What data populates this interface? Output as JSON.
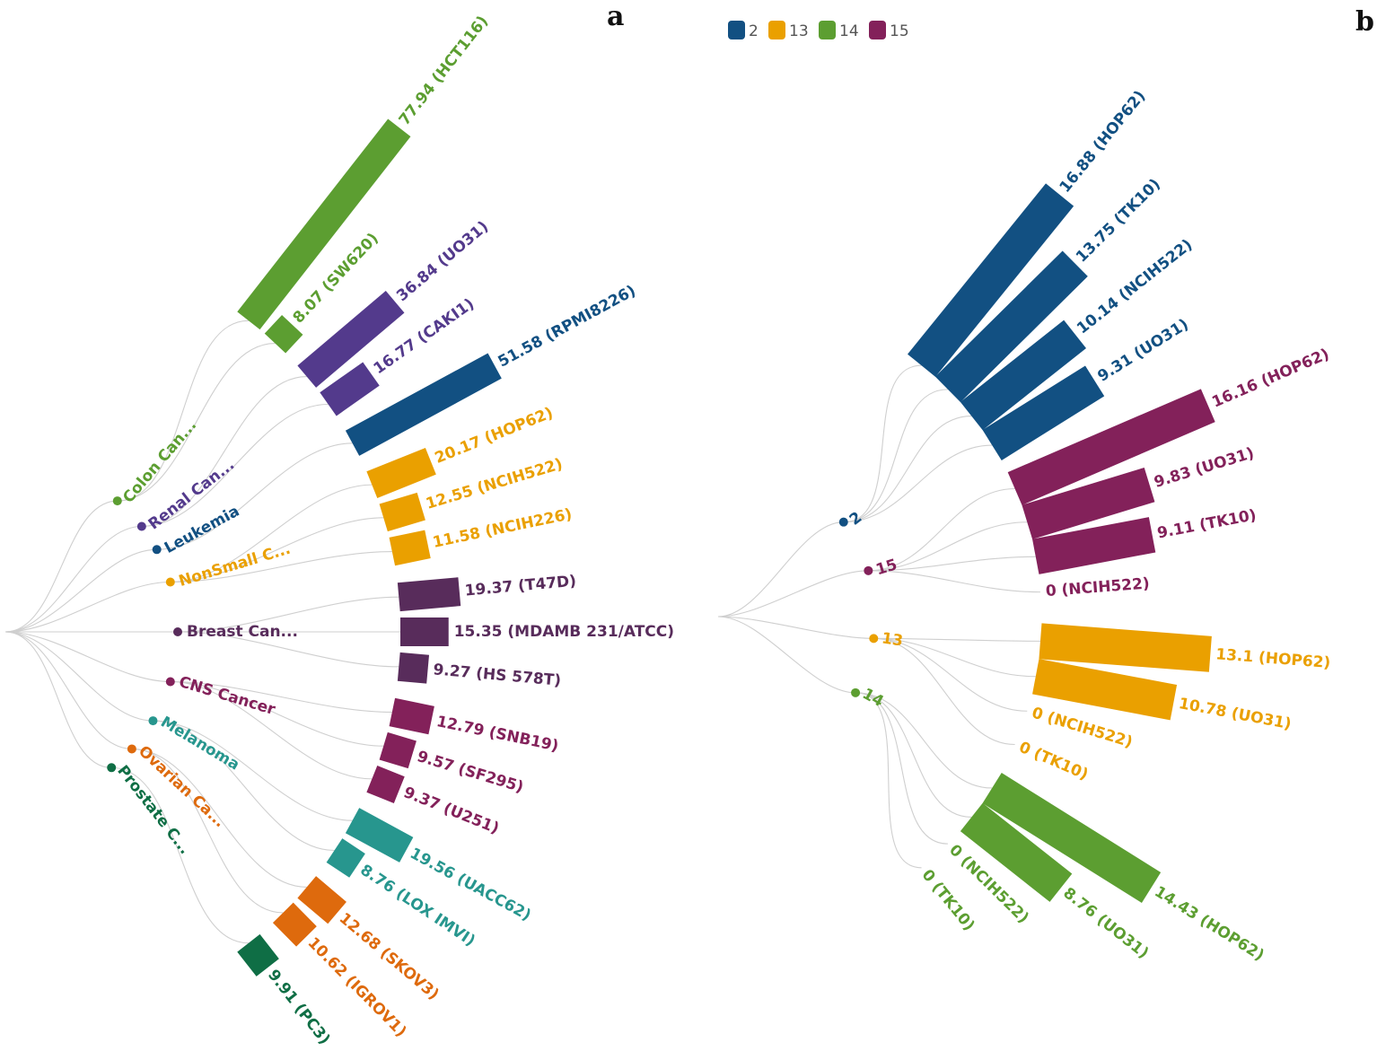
{
  "panels": {
    "a": {
      "letter": "a",
      "groups": [
        {
          "name": "Colon Can...",
          "color": "#5c9e31",
          "bars": [
            {
              "value": 77.94,
              "label": "77.94 (HCT116)"
            },
            {
              "value": 8.07,
              "label": "8.07 (SW620)"
            }
          ]
        },
        {
          "name": "Renal Can...",
          "color": "#533a8c",
          "bars": [
            {
              "value": 36.84,
              "label": "36.84 (UO31)"
            },
            {
              "value": 16.77,
              "label": "16.77 (CAKI1)"
            }
          ]
        },
        {
          "name": "Leukemia",
          "color": "#125082",
          "bars": [
            {
              "value": 51.58,
              "label": "51.58 (RPMI8226)"
            }
          ]
        },
        {
          "name": "NonSmall C...",
          "color": "#eaa000",
          "bars": [
            {
              "value": 20.17,
              "label": "20.17 (HOP62)"
            },
            {
              "value": 12.55,
              "label": "12.55 (NCIH522)"
            },
            {
              "value": 11.58,
              "label": "11.58 (NCIH226)"
            }
          ]
        },
        {
          "name": "Breast Can...",
          "color": "#582c5b",
          "bars": [
            {
              "value": 19.37,
              "label": "19.37 (T47D)"
            },
            {
              "value": 15.35,
              "label": "15.35 (MDAMB 231/ATCC)"
            },
            {
              "value": 9.27,
              "label": "9.27 (HS 578T)"
            }
          ]
        },
        {
          "name": "CNS Cancer",
          "color": "#83215a",
          "bars": [
            {
              "value": 12.79,
              "label": "12.79 (SNB19)"
            },
            {
              "value": 9.57,
              "label": "9.57 (SF295)"
            },
            {
              "value": 9.37,
              "label": "9.37 (U251)"
            }
          ]
        },
        {
          "name": "Melanoma",
          "color": "#27968e",
          "bars": [
            {
              "value": 19.56,
              "label": "19.56 (UACC62)"
            },
            {
              "value": 8.76,
              "label": "8.76 (LOX IMVI)"
            }
          ]
        },
        {
          "name": "Ovarian Ca...",
          "color": "#de6a0d",
          "bars": [
            {
              "value": 12.68,
              "label": "12.68 (SKOV3)"
            },
            {
              "value": 10.62,
              "label": "10.62 (IGROV1)"
            }
          ]
        },
        {
          "name": "Prostate C...",
          "color": "#0f6e45",
          "bars": [
            {
              "value": 9.91,
              "label": "9.91 (PC3)"
            }
          ]
        }
      ]
    },
    "b": {
      "letter": "b",
      "legend": [
        {
          "label": "2",
          "color": "#125082"
        },
        {
          "label": "13",
          "color": "#eaa000"
        },
        {
          "label": "14",
          "color": "#5c9e31"
        },
        {
          "label": "15",
          "color": "#83215a"
        }
      ],
      "groups": [
        {
          "name": "2",
          "color": "#125082",
          "bars": [
            {
              "value": 16.88,
              "label": "16.88 (HOP62)"
            },
            {
              "value": 13.75,
              "label": "13.75 (TK10)"
            },
            {
              "value": 10.14,
              "label": "10.14 (NCIH522)"
            },
            {
              "value": 9.31,
              "label": "9.31 (UO31)"
            }
          ]
        },
        {
          "name": "15",
          "color": "#83215a",
          "bars": [
            {
              "value": 16.16,
              "label": "16.16 (HOP62)"
            },
            {
              "value": 9.83,
              "label": "9.83 (UO31)"
            },
            {
              "value": 9.11,
              "label": "9.11 (TK10)"
            },
            {
              "value": 0,
              "label": "0 (NCIH522)"
            }
          ]
        },
        {
          "name": "13",
          "color": "#eaa000",
          "bars": [
            {
              "value": 13.1,
              "label": "13.1 (HOP62)"
            },
            {
              "value": 10.78,
              "label": "10.78 (UO31)"
            },
            {
              "value": 0,
              "label": "0 (NCIH522)"
            },
            {
              "value": 0,
              "label": "0 (TK10)"
            }
          ]
        },
        {
          "name": "14",
          "color": "#5c9e31",
          "bars": [
            {
              "value": 14.43,
              "label": "14.43 (HOP62)"
            },
            {
              "value": 8.76,
              "label": "8.76 (UO31)"
            },
            {
              "value": 0,
              "label": "0 (NCIH522)"
            },
            {
              "value": 0,
              "label": "0 (TK10)"
            }
          ]
        }
      ]
    }
  },
  "chart_data": [
    {
      "type": "bar",
      "title": "a",
      "categories": [
        "HCT116",
        "SW620",
        "UO31",
        "CAKI1",
        "RPMI8226",
        "HOP62",
        "NCIH522",
        "NCIH226",
        "T47D",
        "MDAMB 231/ATCC",
        "HS 578T",
        "SNB19",
        "SF295",
        "U251",
        "UACC62",
        "LOX IMVI",
        "SKOV3",
        "IGROV1",
        "PC3"
      ],
      "values": [
        77.94,
        8.07,
        36.84,
        16.77,
        51.58,
        20.17,
        12.55,
        11.58,
        19.37,
        15.35,
        9.27,
        12.79,
        9.57,
        9.37,
        19.56,
        8.76,
        12.68,
        10.62,
        9.91
      ],
      "groups": [
        "Colon Can...",
        "Colon Can...",
        "Renal Can...",
        "Renal Can...",
        "Leukemia",
        "NonSmall C...",
        "NonSmall C...",
        "NonSmall C...",
        "Breast Can...",
        "Breast Can...",
        "Breast Can...",
        "CNS Cancer",
        "CNS Cancer",
        "CNS Cancer",
        "Melanoma",
        "Melanoma",
        "Ovarian Ca...",
        "Ovarian Ca...",
        "Prostate C..."
      ]
    },
    {
      "type": "bar",
      "title": "b",
      "legend": [
        "2",
        "13",
        "14",
        "15"
      ],
      "categories": [
        "HOP62",
        "UO31",
        "NCIH522",
        "TK10"
      ],
      "series": [
        {
          "name": "2",
          "values": [
            16.88,
            9.31,
            10.14,
            13.75
          ]
        },
        {
          "name": "13",
          "values": [
            13.1,
            10.78,
            0,
            0
          ]
        },
        {
          "name": "14",
          "values": [
            14.43,
            8.76,
            0,
            0
          ]
        },
        {
          "name": "15",
          "values": [
            16.16,
            9.83,
            0,
            9.11
          ]
        }
      ]
    }
  ]
}
